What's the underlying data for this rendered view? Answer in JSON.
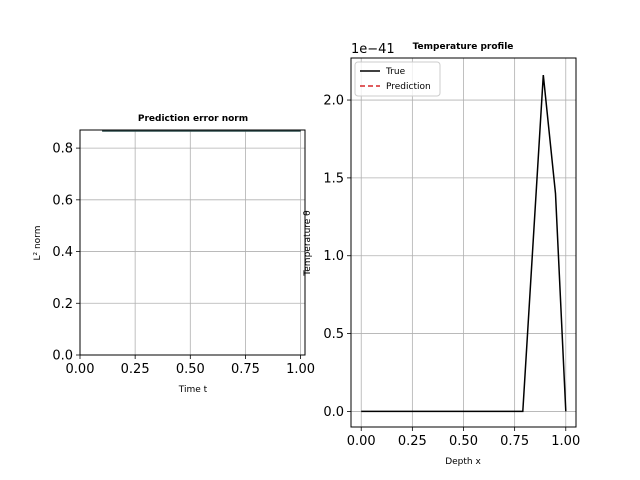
{
  "chart_data": [
    {
      "type": "line",
      "title": "Prediction error norm",
      "xlabel": "Time t",
      "ylabel": "L² norm",
      "xlim": [
        0.0,
        1.02
      ],
      "ylim": [
        0.0,
        0.87
      ],
      "xticks": [
        "0.00",
        "0.25",
        "0.50",
        "0.75",
        "1.00"
      ],
      "yticks": [
        "0.0",
        "0.2",
        "0.4",
        "0.6",
        "0.8"
      ],
      "grid": true,
      "series": [
        {
          "color": "#2f4f4f",
          "x": [
            0.1,
            1.0
          ],
          "y": [
            0.866,
            0.866
          ]
        }
      ]
    },
    {
      "type": "line",
      "title": "Temperature profile",
      "xlabel": "Depth x",
      "ylabel": "Temperature θ",
      "offset_label": "1e−41",
      "xlim": [
        -0.05,
        1.05
      ],
      "ylim": [
        -0.1,
        2.27
      ],
      "xticks": [
        "0.00",
        "0.25",
        "0.50",
        "0.75",
        "1.00"
      ],
      "yticks": [
        "0.0",
        "0.5",
        "1.0",
        "1.5",
        "2.0"
      ],
      "grid": true,
      "legend": "top-left",
      "series": [
        {
          "name": "True",
          "color": "#000000",
          "style": "solid",
          "x": [
            0.0,
            0.1,
            0.2,
            0.3,
            0.4,
            0.5,
            0.6,
            0.7,
            0.79,
            0.89,
            0.95,
            1.0
          ],
          "y": [
            0,
            0,
            0,
            0,
            0,
            0,
            0,
            0,
            0,
            2.16,
            1.4,
            0
          ]
        },
        {
          "name": "Prediction",
          "color": "#d62728",
          "style": "dashed",
          "x": [],
          "y": []
        }
      ]
    }
  ]
}
